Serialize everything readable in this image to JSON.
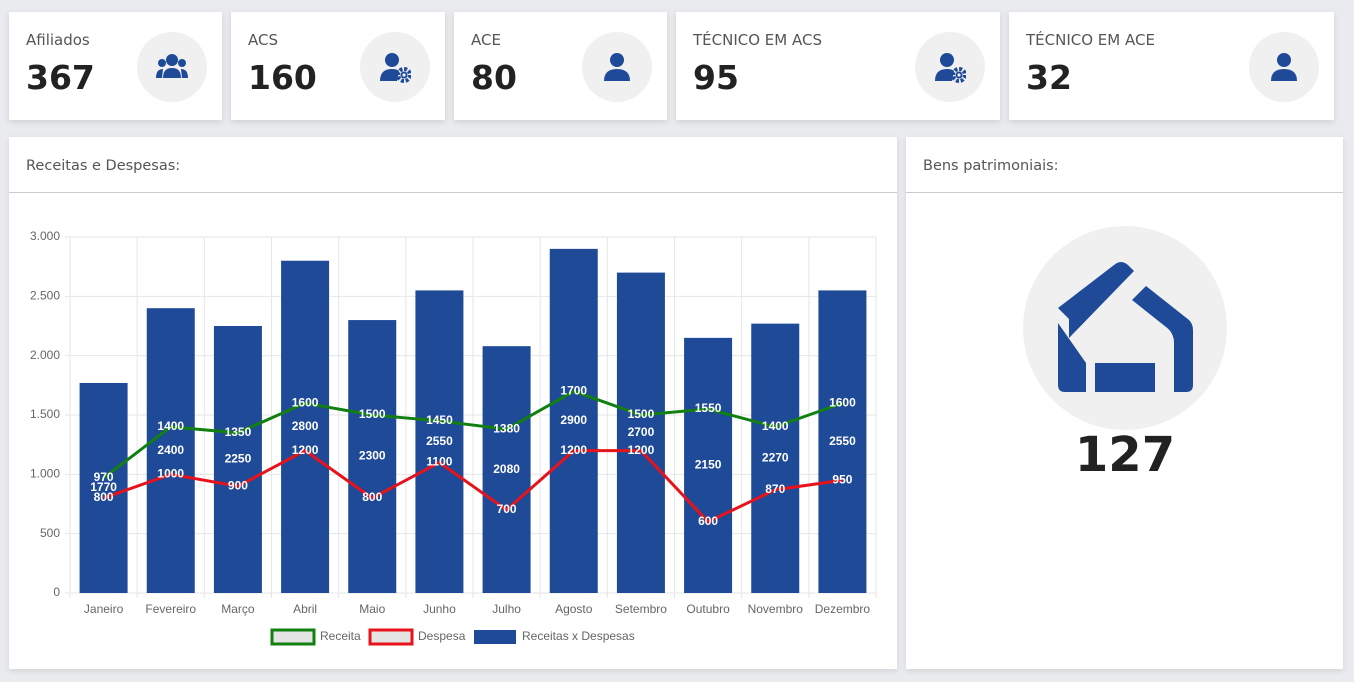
{
  "cards": [
    {
      "label": "Afiliados",
      "value": 367
    },
    {
      "label": "ACS",
      "value": 160
    },
    {
      "label": "ACE",
      "value": 80
    },
    {
      "label": "TÉCNICO EM ACS",
      "value": 95
    },
    {
      "label": "TÉCNICO EM ACE",
      "value": 32
    }
  ],
  "chart_panel": {
    "title": "Receitas e Despesas:"
  },
  "chart_data": {
    "type": "bar",
    "categories": [
      "Janeiro",
      "Fevereiro",
      "Março",
      "Abril",
      "Maio",
      "Junho",
      "Julho",
      "Agosto",
      "Setembro",
      "Outubro",
      "Novembro",
      "Dezembro"
    ],
    "series": [
      {
        "name": "Receita",
        "type": "line",
        "color": "#118011",
        "values": [
          970,
          1400,
          1350,
          1600,
          1500,
          1450,
          1380,
          1700,
          1500,
          1550,
          1400,
          1600
        ]
      },
      {
        "name": "Despesa",
        "type": "line",
        "color": "#e8121b",
        "values": [
          800,
          1000,
          900,
          1200,
          800,
          1100,
          700,
          1200,
          1200,
          600,
          870,
          950
        ]
      },
      {
        "name": "Receitas x Despesas",
        "type": "bar",
        "color": "#1f4a98",
        "values": [
          1770,
          2400,
          2250,
          2800,
          2300,
          2550,
          2080,
          2900,
          2700,
          2150,
          2270,
          2550
        ]
      }
    ],
    "ylim": [
      0,
      3000
    ],
    "yticks": [
      0,
      500,
      {
        "value": 1000,
        "label": "1.000"
      },
      {
        "value": 1500,
        "label": "1.500"
      },
      {
        "value": 2000,
        "label": "2.000"
      },
      {
        "value": 2500,
        "label": "2.500"
      },
      {
        "value": 3000,
        "label": "3.000"
      }
    ],
    "grid": true,
    "legend": "bottom"
  },
  "bens": {
    "title": "Bens patrimoniais:",
    "value": 127
  }
}
